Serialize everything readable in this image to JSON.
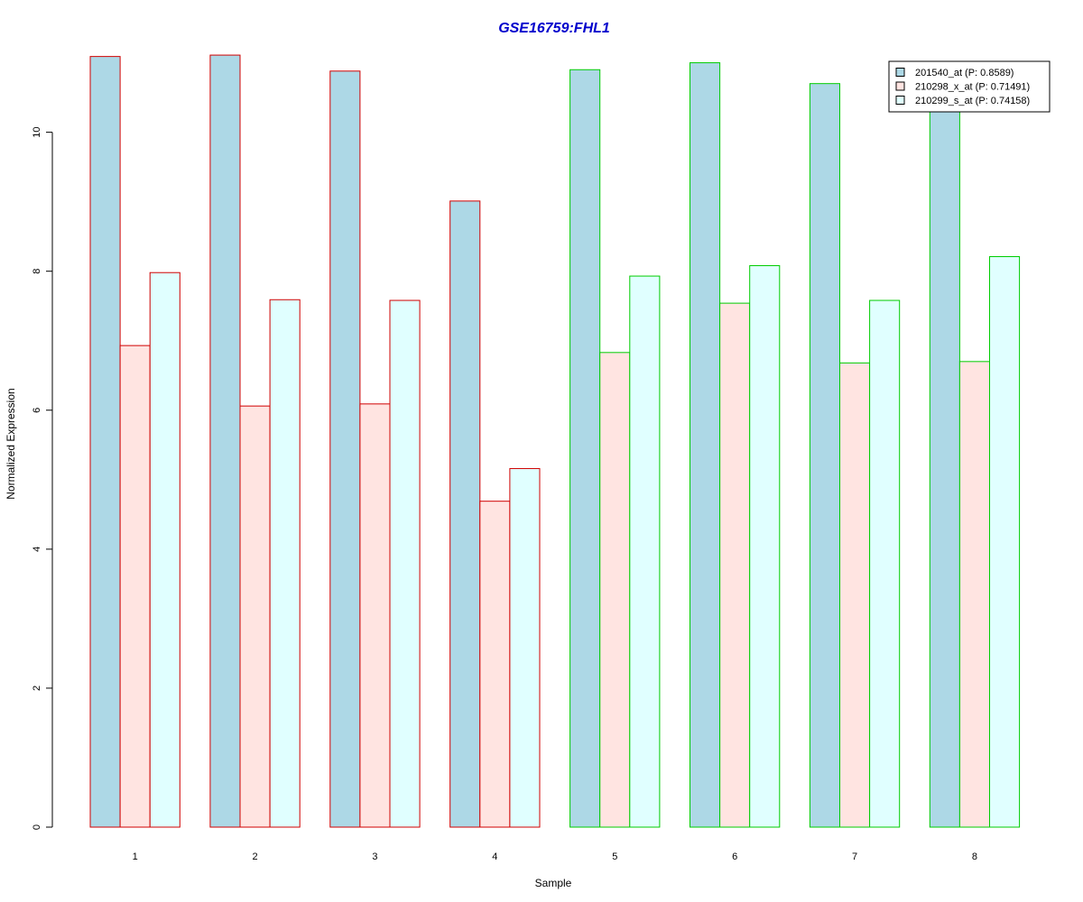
{
  "chart_data": {
    "type": "bar",
    "title": "GSE16759:FHL1",
    "xlabel": "Sample",
    "ylabel": "Normalized Expression",
    "ylim": [
      0,
      11.2
    ],
    "yticks": [
      0,
      2,
      4,
      6,
      8,
      10
    ],
    "categories": [
      "1",
      "2",
      "3",
      "4",
      "5",
      "6",
      "7",
      "8"
    ],
    "group_border_colors": [
      "#d00000",
      "#d00000",
      "#d00000",
      "#d00000",
      "#00cc00",
      "#00cc00",
      "#00cc00",
      "#00cc00"
    ],
    "series": [
      {
        "name": "201540_at (P: 0.8589)",
        "color": "#add8e6",
        "values": [
          11.09,
          11.11,
          10.88,
          9.01,
          10.9,
          11.0,
          10.7,
          10.35
        ]
      },
      {
        "name": "210298_x_at (P: 0.71491)",
        "color": "#ffe4e1",
        "values": [
          6.93,
          6.06,
          6.09,
          4.69,
          6.83,
          7.54,
          6.68,
          6.7
        ]
      },
      {
        "name": "210299_s_at (P: 0.74158)",
        "color": "#e0ffff",
        "values": [
          7.98,
          7.59,
          7.58,
          5.16,
          7.93,
          8.08,
          7.58,
          8.21
        ]
      }
    ],
    "legend_position": "top-right",
    "grid": false
  },
  "colors": {
    "title": "#0000cc",
    "axis": "#000000"
  }
}
